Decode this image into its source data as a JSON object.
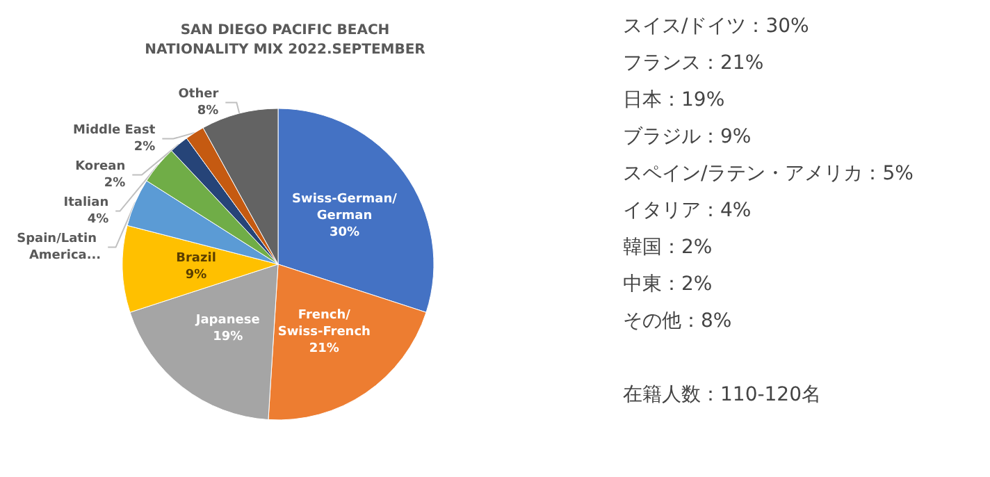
{
  "chart_data": {
    "type": "pie",
    "title": "SAN DIEGO PACIFIC BEACH\nNATIONALITY MIX 2022.SEPTEMBER",
    "categories": [
      "Swiss-German/German",
      "French/Swiss-French",
      "Japanese",
      "Brazil",
      "Spain/Latin America...",
      "Italian",
      "Korean",
      "Middle East",
      "Other"
    ],
    "values": [
      30,
      21,
      19,
      9,
      5,
      4,
      2,
      2,
      8
    ],
    "value_labels": [
      "30%",
      "21%",
      "19%",
      "9%",
      null,
      "4%",
      "2%",
      "2%",
      "8%"
    ],
    "colors": [
      "#4472c4",
      "#ed7d31",
      "#a5a5a5",
      "#ffc000",
      "#5b9bd5",
      "#70ad47",
      "#264478",
      "#c55a11",
      "#636363"
    ],
    "legend": false,
    "annotations": [
      "スイス/ドイツ：30%",
      "フランス：21%",
      "日本：19%",
      "ブラジル：9%",
      "スペイン/ラテン・アメリカ：5%",
      "イタリア：4%",
      "韓国：2%",
      "中東：2%",
      "その他：8%",
      "在籍人数：110-120名"
    ]
  }
}
